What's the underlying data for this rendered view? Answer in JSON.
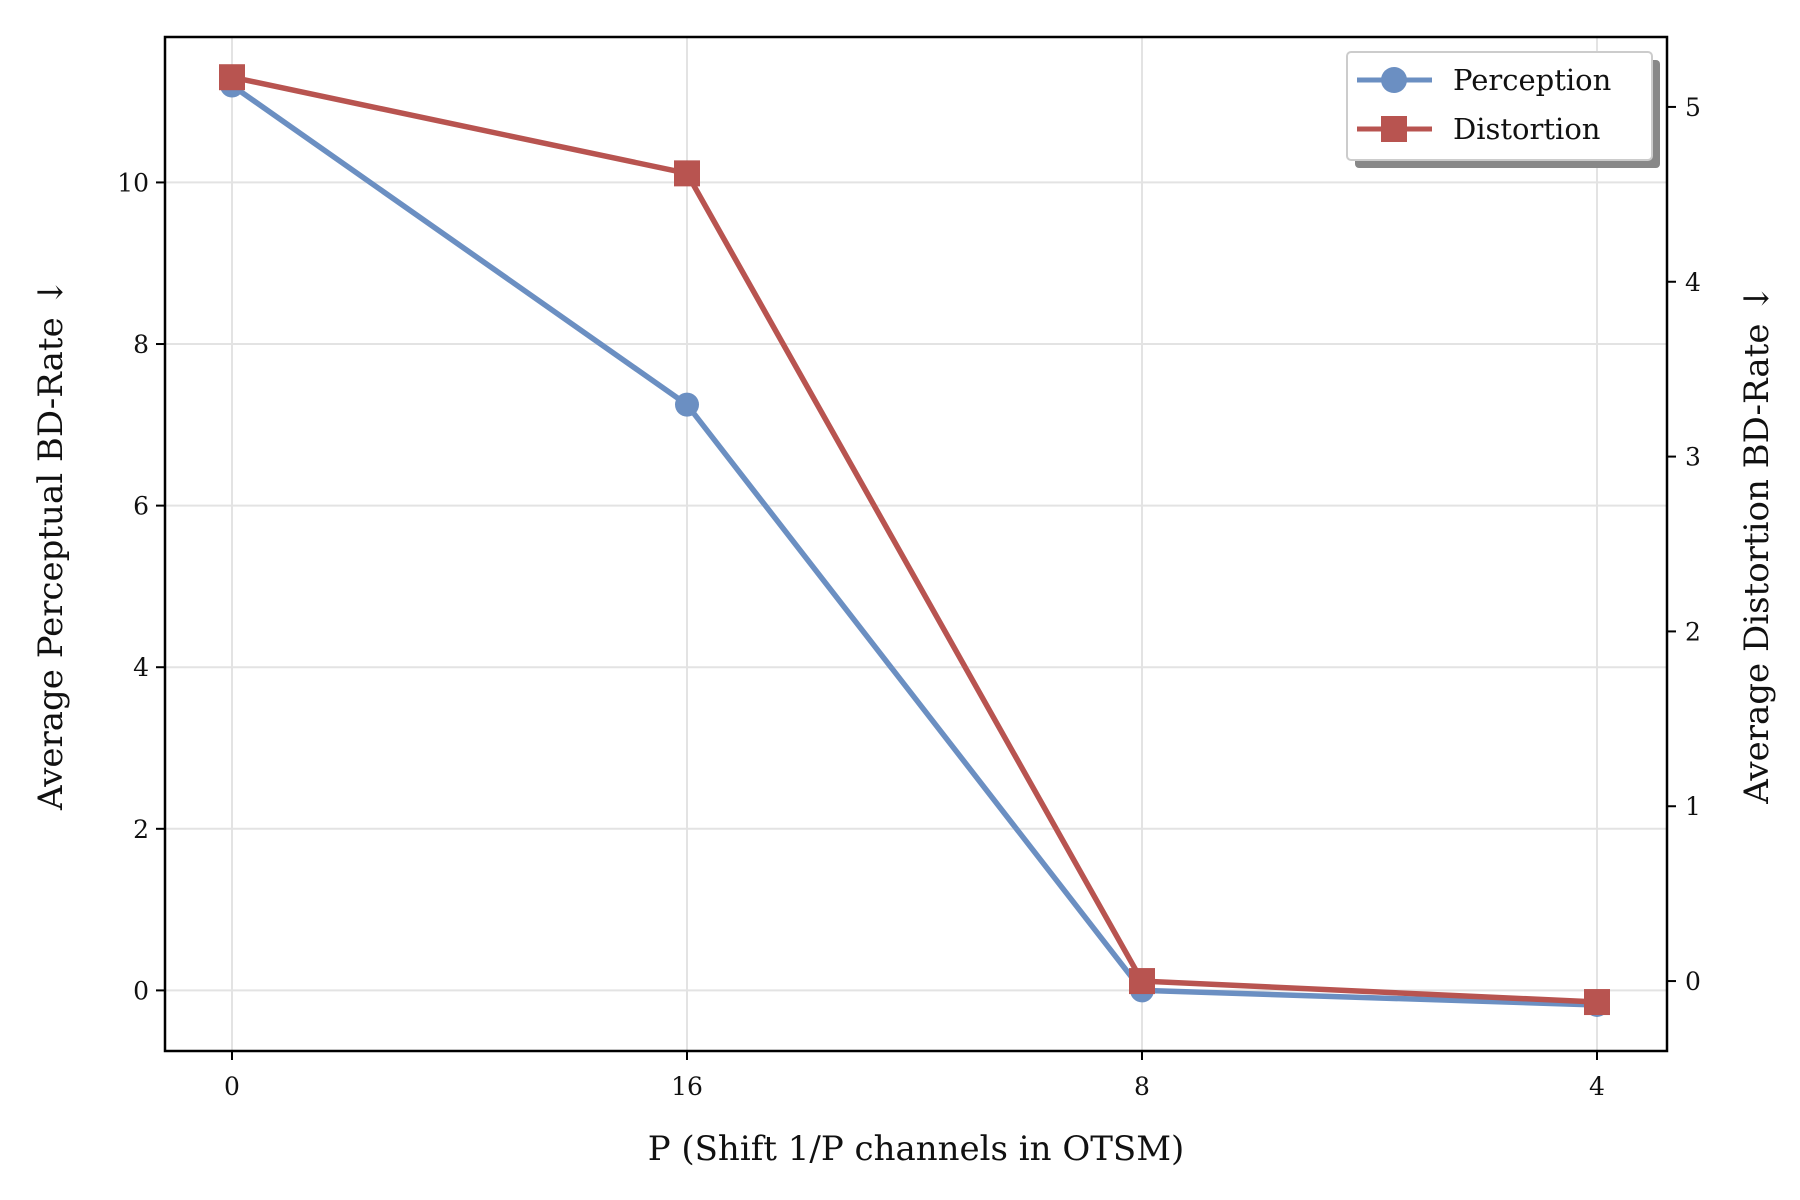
{
  "chart_data": {
    "type": "line",
    "x_categories": [
      "0",
      "16",
      "8",
      "4"
    ],
    "xlabel": "P (Shift 1/P channels in OTSM)",
    "ylabel_left": "Average Perceptual BD-Rate ↓",
    "ylabel_right": "Average Distortion BD-Rate ↓",
    "ylim_left": [
      -0.75,
      11.8
    ],
    "ylim_right": [
      -0.4,
      5.4
    ],
    "yticks_left": [
      0,
      2,
      4,
      6,
      8,
      10
    ],
    "yticks_right": [
      0,
      1,
      2,
      3,
      4,
      5
    ],
    "grid": true,
    "legend_position": "top-right",
    "series": [
      {
        "name": "Perception",
        "axis": "left",
        "marker": "circle",
        "color": "#6b8fc2",
        "values": [
          11.2,
          7.25,
          0.0,
          -0.18
        ]
      },
      {
        "name": "Distortion",
        "axis": "right",
        "marker": "square",
        "color": "#b85450",
        "values": [
          5.17,
          4.62,
          0.0,
          -0.12
        ]
      }
    ]
  }
}
